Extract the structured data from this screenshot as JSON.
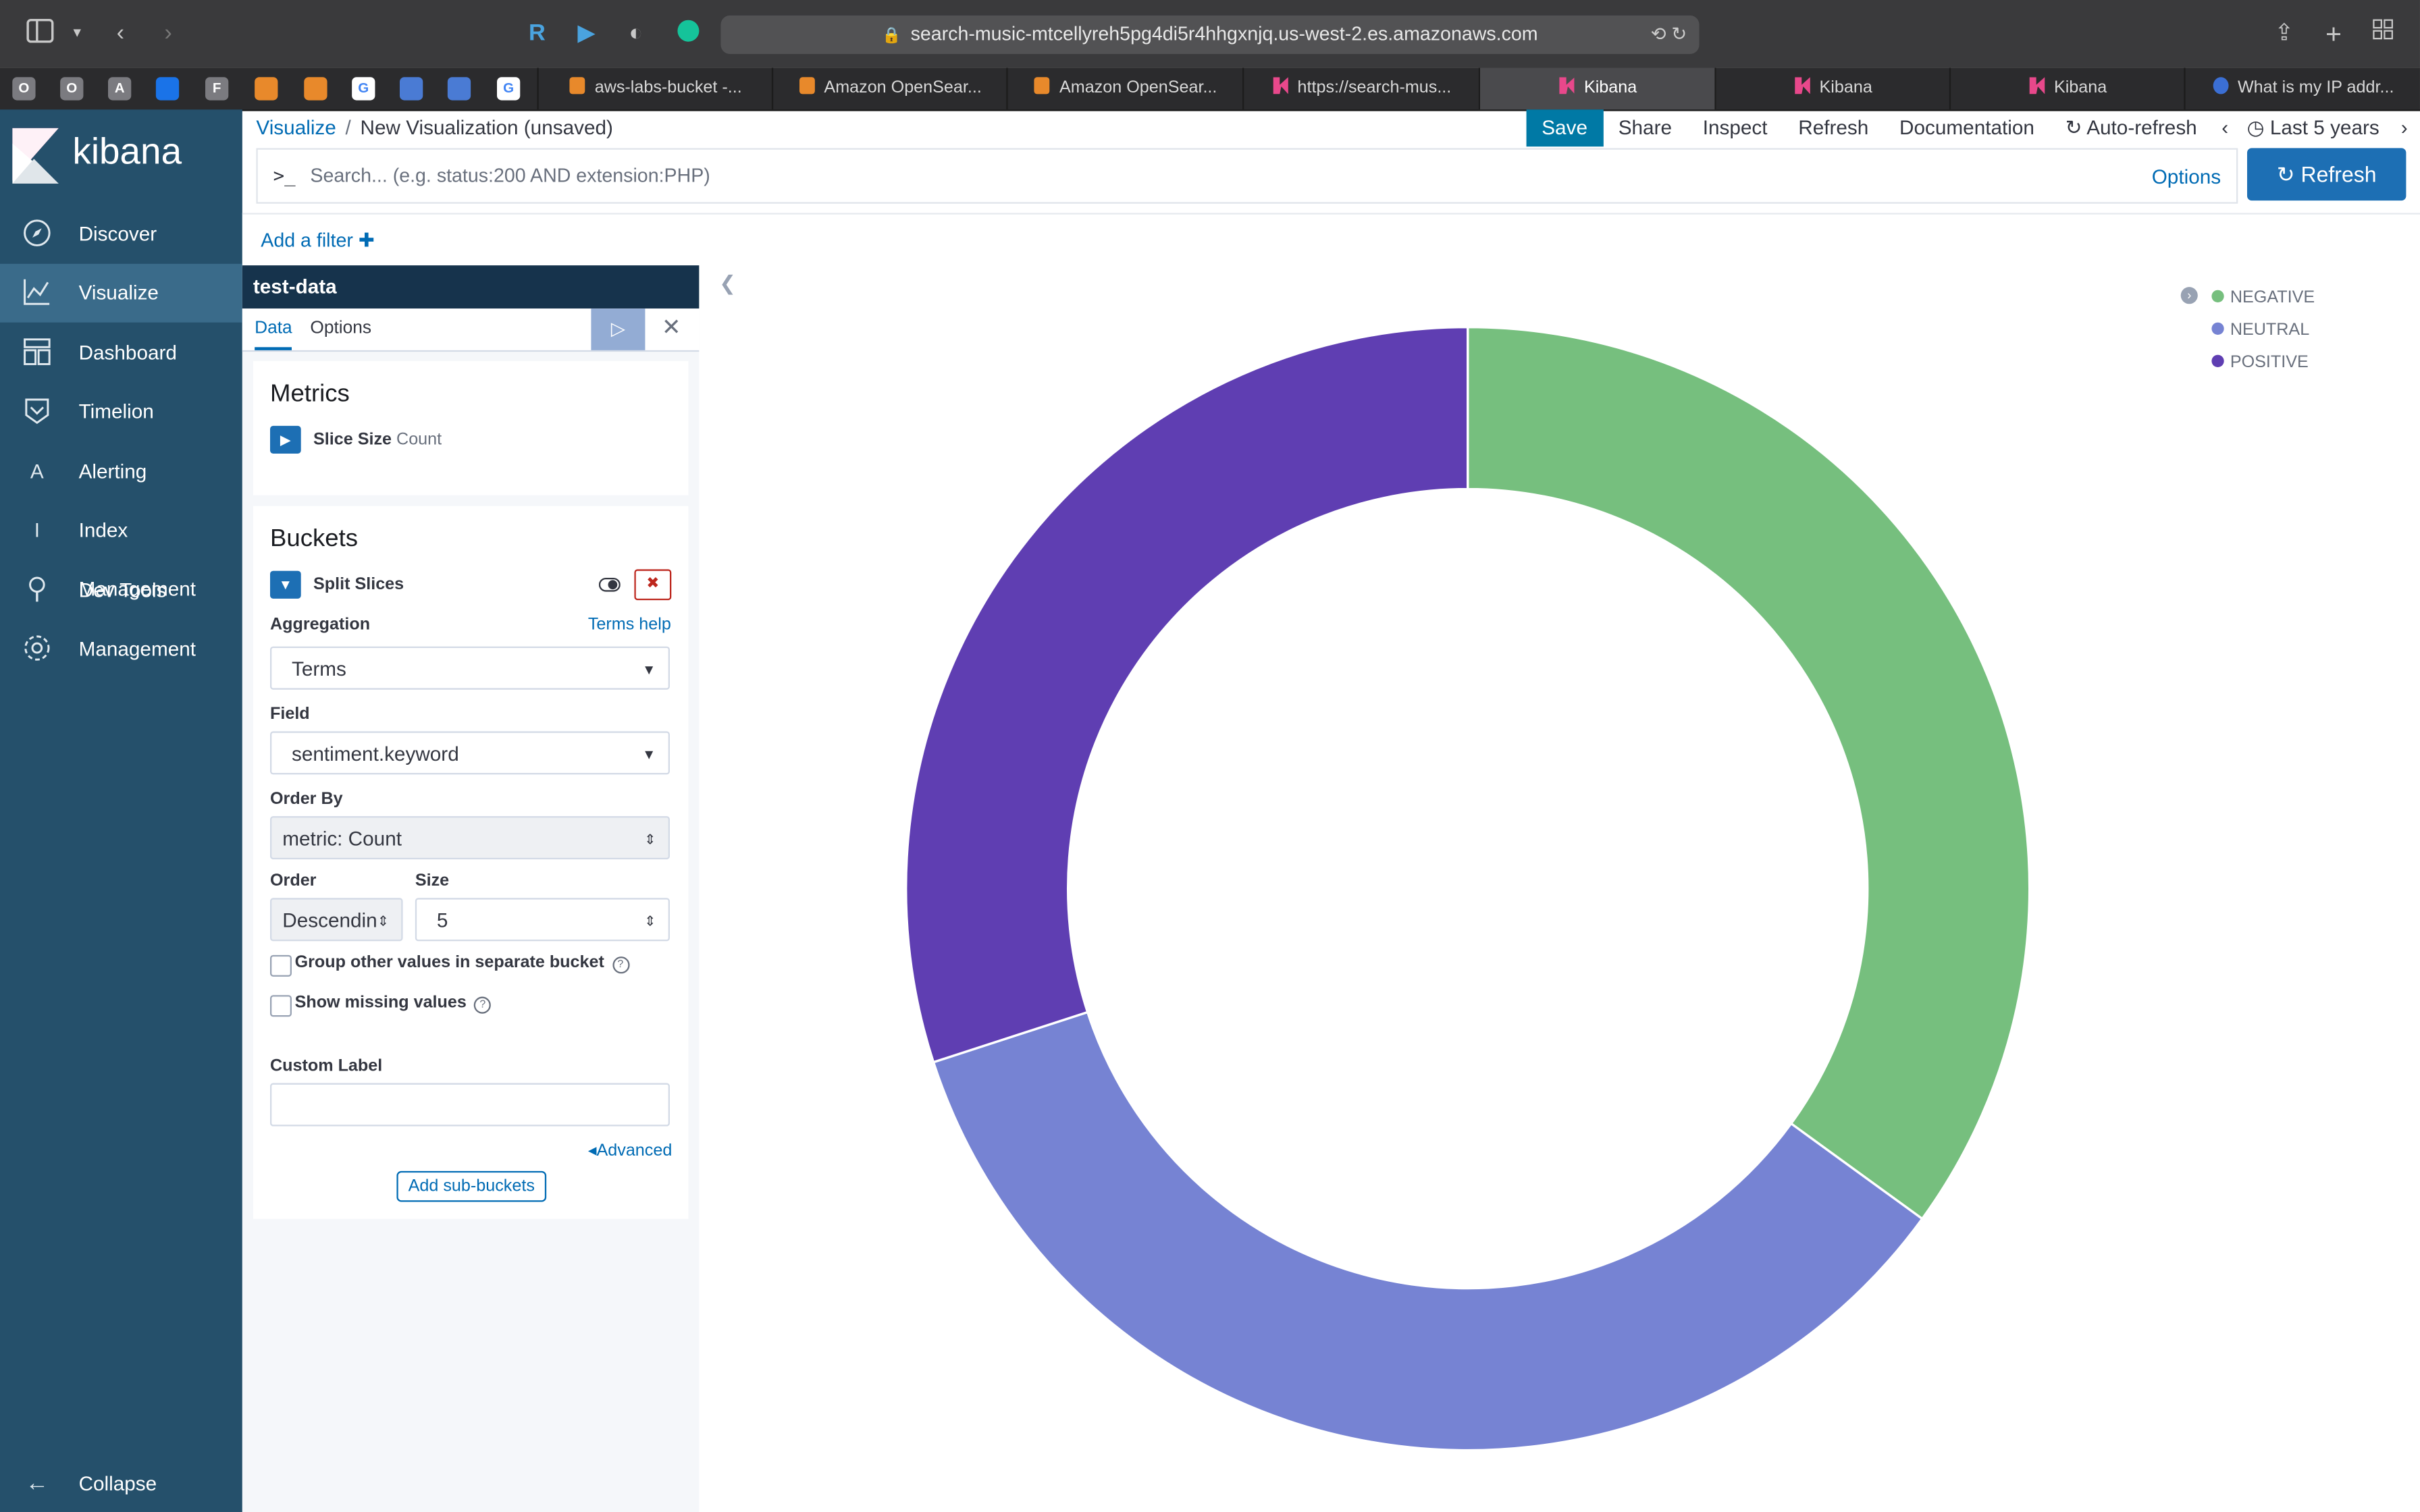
{
  "browser": {
    "url": "search-music-mtcellyreh5pg4di5r4hhgxnjq.us-west-2.es.amazonaws.com",
    "pinned": [
      "O",
      "O",
      "A",
      "F"
    ],
    "tabs": [
      {
        "label": "aws-labs-bucket -...",
        "favicon": "aws-icon"
      },
      {
        "label": "Amazon OpenSear...",
        "favicon": "aws-icon"
      },
      {
        "label": "Amazon OpenSear...",
        "favicon": "aws-icon"
      },
      {
        "label": "https://search-mus...",
        "favicon": "kibana-icon"
      },
      {
        "label": "Kibana",
        "favicon": "kibana-icon",
        "active": true
      },
      {
        "label": "Kibana",
        "favicon": "kibana-icon"
      },
      {
        "label": "Kibana",
        "favicon": "kibana-icon"
      },
      {
        "label": "What is my IP addr...",
        "favicon": "globe-icon"
      }
    ]
  },
  "sidebar": {
    "brand": "kibana",
    "items": [
      {
        "label": "Discover",
        "icon": "compass-icon"
      },
      {
        "label": "Visualize",
        "icon": "chart-icon",
        "active": true
      },
      {
        "label": "Dashboard",
        "icon": "dashboard-icon"
      },
      {
        "label": "Timelion",
        "icon": "timelion-icon"
      },
      {
        "label": "Alerting",
        "icon": "alerting-icon",
        "glyph": "A"
      },
      {
        "label": "Index Management",
        "icon": "index-icon",
        "glyph": "I"
      },
      {
        "label": "Dev Tools",
        "icon": "wrench-icon"
      },
      {
        "label": "Management",
        "icon": "gear-icon"
      }
    ],
    "collapse": "Collapse"
  },
  "header": {
    "breadcrumb_link": "Visualize",
    "breadcrumb_sep": "/",
    "breadcrumb_current": "New Visualization (unsaved)",
    "save": "Save",
    "share": "Share",
    "inspect": "Inspect",
    "refresh": "Refresh",
    "documentation": "Documentation",
    "auto_refresh": "Auto-refresh",
    "time_range": "Last 5 years"
  },
  "search": {
    "prompt": ">_",
    "placeholder": "Search... (e.g. status:200 AND extension:PHP)",
    "options": "Options",
    "refresh_button": "Refresh"
  },
  "filters": {
    "add": "Add a filter"
  },
  "editor": {
    "index": "test-data",
    "tab_data": "Data",
    "tab_options": "Options",
    "metrics_title": "Metrics",
    "metric_name": "Slice Size",
    "metric_agg": "Count",
    "buckets_title": "Buckets",
    "bucket_name": "Split Slices",
    "aggregation_label": "Aggregation",
    "terms_help": "Terms help",
    "aggregation_value": "Terms",
    "field_label": "Field",
    "field_value": "sentiment.keyword",
    "order_by_label": "Order By",
    "order_by_value": "metric: Count",
    "order_label": "Order",
    "order_value": "Descendin",
    "size_label": "Size",
    "size_value": "5",
    "group_other": "Group other values in separate bucket",
    "show_missing": "Show missing values",
    "custom_label": "Custom Label",
    "custom_label_value": "",
    "advanced": "Advanced",
    "add_sub_buckets": "Add sub-buckets"
  },
  "chart_data": {
    "type": "pie",
    "donut": true,
    "legend_position": "top-right",
    "series": [
      {
        "name": "NEGATIVE",
        "value": 35,
        "color": "#76bf7e"
      },
      {
        "name": "NEUTRAL",
        "value": 35,
        "color": "#7683d3"
      },
      {
        "name": "POSITIVE",
        "value": 30,
        "color": "#5f3eb2"
      }
    ]
  }
}
